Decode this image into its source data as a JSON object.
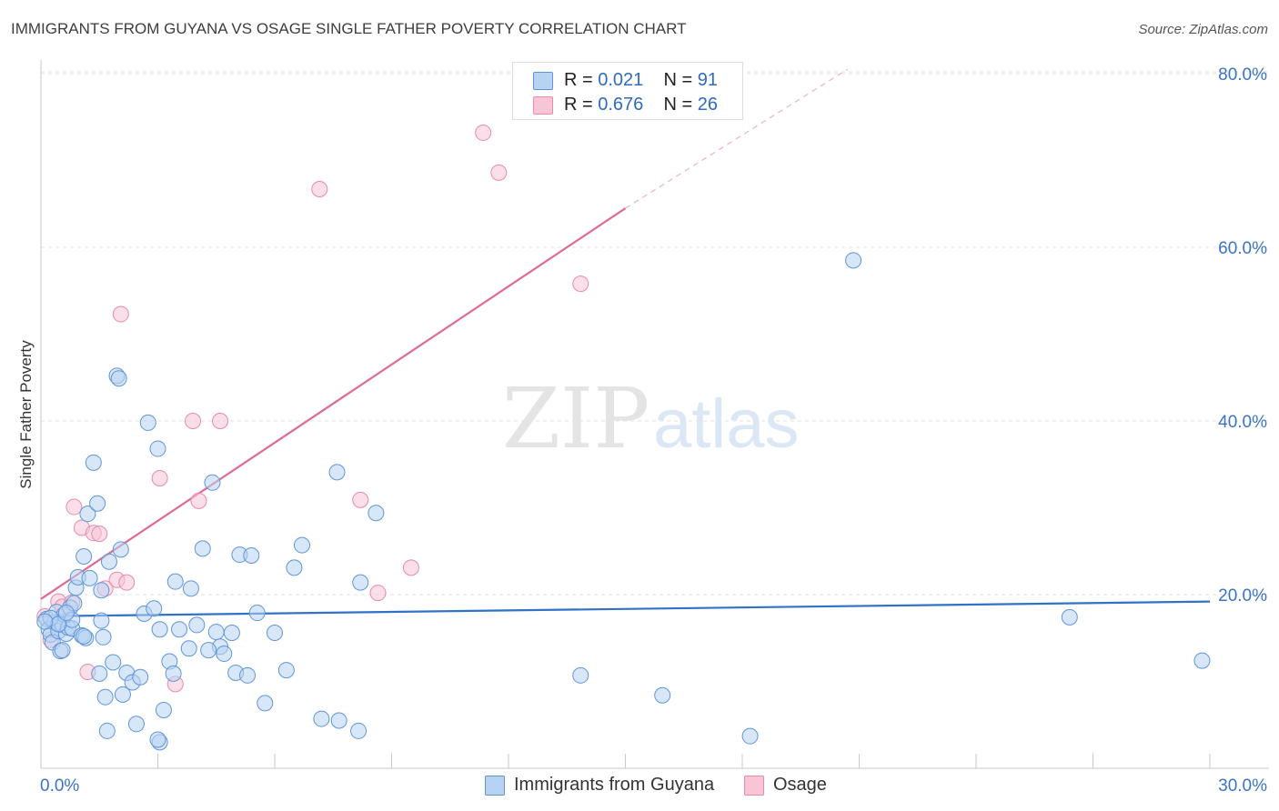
{
  "header": {
    "title": "IMMIGRANTS FROM GUYANA VS OSAGE SINGLE FATHER POVERTY CORRELATION CHART",
    "source": "Source: ZipAtlas.com"
  },
  "legend": {
    "series1": {
      "r_label": "R =",
      "r_value": "0.021",
      "n_label": "N =",
      "n_value": "91"
    },
    "series2": {
      "r_label": "R =",
      "r_value": "0.676",
      "n_label": "N =",
      "n_value": "26"
    }
  },
  "colors": {
    "blue_fill": "#b8d3f2",
    "blue_stroke": "#5f95d8",
    "blue_line": "#2f72c8",
    "pink_fill": "#f7c5d6",
    "pink_stroke": "#e88aab",
    "pink_line": "#e06a94",
    "tick_label": "#3a74c4",
    "grid": "#e2e2e2"
  },
  "watermark": {
    "part1": "ZIP",
    "part2": "atlas"
  },
  "chart_data": {
    "type": "scatter",
    "title": "IMMIGRANTS FROM GUYANA VS OSAGE SINGLE FATHER POVERTY CORRELATION CHART",
    "xlabel": "",
    "ylabel": "Single Father Poverty",
    "xlim": [
      0,
      30
    ],
    "ylim": [
      0,
      80
    ],
    "x_tick_labels": [
      {
        "value": 0,
        "label": "0.0%"
      },
      {
        "value": 30,
        "label": "30.0%"
      }
    ],
    "y_tick_labels": [
      {
        "value": 20,
        "label": "20.0%"
      },
      {
        "value": 40,
        "label": "40.0%"
      },
      {
        "value": 60,
        "label": "60.0%"
      },
      {
        "value": 80,
        "label": "80.0%"
      }
    ],
    "series": [
      {
        "name": "Immigrants from Guyana",
        "color": "#5f95d8",
        "trend": {
          "x": [
            0,
            30
          ],
          "y": [
            17.5,
            19.2
          ]
        },
        "points": [
          [
            0.15,
            17.2
          ],
          [
            0.2,
            16.0
          ],
          [
            0.25,
            15.4
          ],
          [
            0.3,
            14.5
          ],
          [
            0.35,
            16.8
          ],
          [
            0.4,
            18.0
          ],
          [
            0.45,
            15.8
          ],
          [
            0.5,
            13.5
          ],
          [
            0.55,
            16.5
          ],
          [
            0.6,
            17.7
          ],
          [
            0.65,
            15.5
          ],
          [
            0.7,
            16.2
          ],
          [
            0.75,
            18.5
          ],
          [
            0.8,
            16.1
          ],
          [
            0.85,
            19.0
          ],
          [
            0.9,
            20.8
          ],
          [
            0.95,
            22.0
          ],
          [
            1.05,
            15.3
          ],
          [
            1.1,
            24.4
          ],
          [
            1.15,
            15.0
          ],
          [
            1.2,
            29.3
          ],
          [
            1.25,
            21.9
          ],
          [
            1.35,
            35.2
          ],
          [
            1.45,
            30.5
          ],
          [
            1.55,
            17.0
          ],
          [
            1.65,
            8.2
          ],
          [
            1.75,
            23.8
          ],
          [
            1.85,
            12.2
          ],
          [
            1.95,
            45.2
          ],
          [
            2.05,
            25.2
          ],
          [
            2.2,
            11.0
          ],
          [
            2.35,
            9.9
          ],
          [
            2.45,
            5.1
          ],
          [
            2.55,
            10.5
          ],
          [
            2.65,
            17.8
          ],
          [
            2.75,
            39.8
          ],
          [
            2.9,
            18.4
          ],
          [
            3.0,
            36.8
          ],
          [
            3.05,
            16.0
          ],
          [
            3.15,
            6.7
          ],
          [
            3.3,
            12.3
          ],
          [
            3.4,
            10.9
          ],
          [
            3.45,
            21.5
          ],
          [
            3.55,
            16.0
          ],
          [
            3.8,
            13.8
          ],
          [
            3.85,
            20.7
          ],
          [
            4.0,
            16.5
          ],
          [
            4.15,
            25.3
          ],
          [
            4.4,
            32.9
          ],
          [
            4.5,
            15.7
          ],
          [
            4.6,
            14.0
          ],
          [
            4.7,
            13.2
          ],
          [
            4.9,
            15.6
          ],
          [
            5.0,
            11.0
          ],
          [
            5.1,
            24.6
          ],
          [
            5.3,
            10.7
          ],
          [
            5.4,
            24.5
          ],
          [
            5.55,
            17.9
          ],
          [
            5.75,
            7.5
          ],
          [
            6.0,
            15.6
          ],
          [
            6.3,
            11.3
          ],
          [
            6.5,
            23.1
          ],
          [
            6.7,
            25.7
          ],
          [
            7.2,
            5.7
          ],
          [
            7.6,
            34.1
          ],
          [
            7.65,
            5.5
          ],
          [
            8.2,
            21.4
          ],
          [
            8.6,
            29.4
          ],
          [
            8.15,
            4.3
          ],
          [
            13.85,
            10.7
          ],
          [
            15.95,
            8.4
          ],
          [
            18.2,
            3.7
          ],
          [
            20.85,
            58.5
          ],
          [
            26.4,
            17.4
          ],
          [
            29.8,
            12.4
          ],
          [
            2.1,
            8.5
          ],
          [
            1.1,
            15.2
          ],
          [
            0.55,
            13.6
          ],
          [
            0.8,
            17.1
          ],
          [
            0.25,
            17.3
          ],
          [
            0.45,
            16.6
          ],
          [
            0.65,
            17.9
          ],
          [
            1.55,
            20.5
          ],
          [
            3.05,
            3.0
          ],
          [
            1.6,
            15.1
          ],
          [
            3.0,
            3.3
          ],
          [
            1.5,
            10.9
          ],
          [
            0.1,
            16.9
          ],
          [
            2.0,
            44.9
          ],
          [
            1.7,
            4.3
          ],
          [
            4.3,
            13.6
          ]
        ]
      },
      {
        "name": "Osage",
        "color": "#e88aab",
        "trend": {
          "x": [
            0,
            15.0
          ],
          "y": [
            19.5,
            64.5
          ]
        },
        "trend_dashed": {
          "x": [
            15.0,
            20.7
          ],
          "y": [
            64.5,
            80.5
          ]
        },
        "points": [
          [
            0.1,
            17.5
          ],
          [
            0.25,
            14.8
          ],
          [
            0.45,
            19.2
          ],
          [
            0.55,
            18.6
          ],
          [
            0.8,
            19.1
          ],
          [
            0.85,
            30.1
          ],
          [
            1.05,
            27.7
          ],
          [
            1.2,
            11.1
          ],
          [
            1.35,
            27.1
          ],
          [
            1.5,
            27.0
          ],
          [
            1.65,
            20.7
          ],
          [
            1.95,
            21.7
          ],
          [
            2.2,
            21.4
          ],
          [
            2.05,
            52.3
          ],
          [
            3.05,
            33.4
          ],
          [
            3.45,
            9.7
          ],
          [
            3.9,
            40.0
          ],
          [
            4.05,
            30.8
          ],
          [
            4.6,
            40.0
          ],
          [
            7.15,
            66.7
          ],
          [
            8.2,
            30.9
          ],
          [
            8.65,
            20.2
          ],
          [
            9.5,
            23.1
          ],
          [
            11.35,
            73.2
          ],
          [
            11.75,
            68.6
          ],
          [
            13.85,
            55.8
          ]
        ]
      }
    ]
  },
  "bottom_legend": {
    "item1": "Immigrants from Guyana",
    "item2": "Osage"
  }
}
